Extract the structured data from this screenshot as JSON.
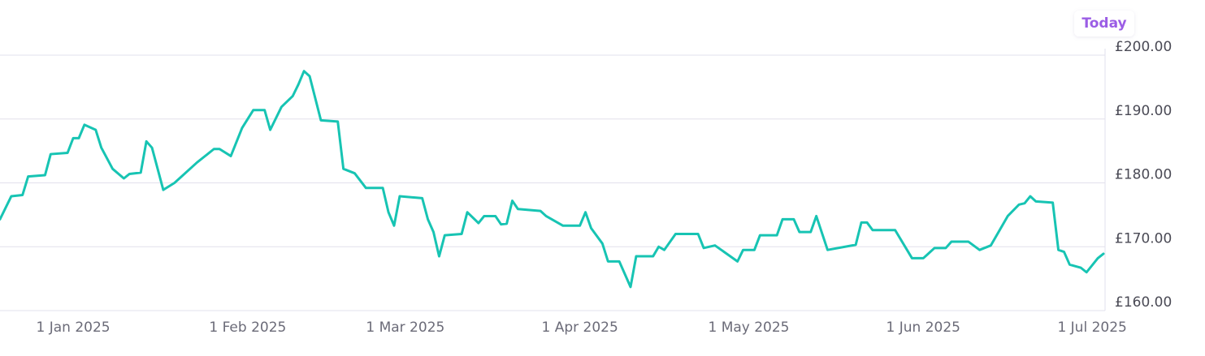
{
  "chart_data": {
    "type": "line",
    "today_label": "Today",
    "x": [
      "2024-12-19",
      "2024-12-21",
      "2024-12-23",
      "2024-12-24",
      "2024-12-27",
      "2024-12-28",
      "2024-12-31",
      "2025-01-01",
      "2025-01-02",
      "2025-01-03",
      "2025-01-05",
      "2025-01-06",
      "2025-01-08",
      "2025-01-10",
      "2025-01-11",
      "2025-01-13",
      "2025-01-14",
      "2025-01-15",
      "2025-01-17",
      "2025-01-19",
      "2025-01-23",
      "2025-01-26",
      "2025-01-27",
      "2025-01-29",
      "2025-01-31",
      "2025-02-02",
      "2025-02-04",
      "2025-02-05",
      "2025-02-07",
      "2025-02-09",
      "2025-02-10",
      "2025-02-11",
      "2025-02-12",
      "2025-02-14",
      "2025-02-17",
      "2025-02-18",
      "2025-02-20",
      "2025-02-22",
      "2025-02-25",
      "2025-02-26",
      "2025-02-27",
      "2025-02-28",
      "2025-03-04",
      "2025-03-05",
      "2025-03-06",
      "2025-03-07",
      "2025-03-08",
      "2025-03-11",
      "2025-03-12",
      "2025-03-14",
      "2025-03-15",
      "2025-03-17",
      "2025-03-18",
      "2025-03-19",
      "2025-03-20",
      "2025-03-21",
      "2025-03-25",
      "2025-03-26",
      "2025-03-29",
      "2025-04-01",
      "2025-04-02",
      "2025-04-03",
      "2025-04-05",
      "2025-04-06",
      "2025-04-08",
      "2025-04-10",
      "2025-04-11",
      "2025-04-14",
      "2025-04-15",
      "2025-04-16",
      "2025-04-18",
      "2025-04-22",
      "2025-04-23",
      "2025-04-25",
      "2025-04-29",
      "2025-04-30",
      "2025-05-02",
      "2025-05-03",
      "2025-05-06",
      "2025-05-07",
      "2025-05-09",
      "2025-05-10",
      "2025-05-12",
      "2025-05-13",
      "2025-05-15",
      "2025-05-20",
      "2025-05-21",
      "2025-05-22",
      "2025-05-23",
      "2025-05-27",
      "2025-05-30",
      "2025-06-01",
      "2025-06-03",
      "2025-06-05",
      "2025-06-06",
      "2025-06-09",
      "2025-06-11",
      "2025-06-13",
      "2025-06-16",
      "2025-06-18",
      "2025-06-19",
      "2025-06-20",
      "2025-06-21",
      "2025-06-24",
      "2025-06-25",
      "2025-06-26",
      "2025-06-27",
      "2025-06-29",
      "2025-06-30",
      "2025-07-02",
      "2025-07-03"
    ],
    "series": [
      {
        "color": "#17c4b3",
        "values": [
          174.3,
          177.9,
          178.1,
          181.0,
          181.2,
          184.5,
          184.7,
          187.0,
          187.0,
          189.1,
          188.3,
          185.5,
          182.2,
          180.7,
          181.4,
          181.6,
          186.5,
          185.5,
          178.9,
          180.0,
          183.2,
          185.3,
          185.3,
          184.2,
          188.6,
          191.4,
          191.4,
          188.3,
          191.9,
          193.6,
          195.4,
          197.5,
          196.7,
          189.8,
          189.6,
          182.2,
          181.5,
          179.2,
          179.2,
          175.4,
          173.3,
          177.9,
          177.6,
          174.3,
          172.3,
          168.5,
          171.8,
          172.0,
          175.4,
          173.7,
          174.8,
          174.8,
          173.5,
          173.6,
          177.2,
          175.9,
          175.6,
          174.8,
          173.3,
          173.3,
          175.4,
          172.9,
          170.5,
          167.7,
          167.7,
          163.7,
          168.5,
          168.5,
          170.0,
          169.5,
          172.0,
          172.0,
          169.8,
          170.2,
          167.7,
          169.5,
          169.5,
          171.8,
          171.8,
          174.3,
          174.3,
          172.3,
          172.3,
          174.8,
          169.5,
          170.3,
          173.8,
          173.8,
          172.6,
          172.6,
          168.2,
          168.2,
          169.8,
          169.8,
          170.8,
          170.8,
          169.5,
          170.2,
          174.8,
          176.6,
          176.8,
          177.9,
          177.1,
          176.9,
          169.5,
          169.2,
          167.2,
          166.7,
          166.0,
          168.2,
          168.9
        ]
      }
    ],
    "xlim": [
      "2024-12-19",
      "2025-07-03"
    ],
    "xticks": [
      {
        "value": "2025-01-01",
        "label": "1 Jan 2025"
      },
      {
        "value": "2025-02-01",
        "label": "1 Feb 2025"
      },
      {
        "value": "2025-03-01",
        "label": "1 Mar 2025"
      },
      {
        "value": "2025-04-01",
        "label": "1 Apr 2025"
      },
      {
        "value": "2025-05-01",
        "label": "1 May 2025"
      },
      {
        "value": "2025-06-01",
        "label": "1 Jun 2025"
      },
      {
        "value": "2025-07-01",
        "label": "1 Jul 2025"
      }
    ],
    "ylim": [
      160,
      200
    ],
    "yticks": [
      {
        "value": 160,
        "label": "£160.00"
      },
      {
        "value": 170,
        "label": "£170.00"
      },
      {
        "value": 180,
        "label": "£180.00"
      },
      {
        "value": 190,
        "label": "£190.00"
      },
      {
        "value": 200,
        "label": "£200.00"
      }
    ],
    "grid": true
  }
}
